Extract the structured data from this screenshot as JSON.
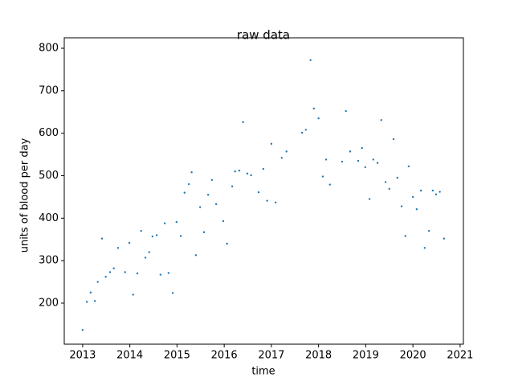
{
  "chart_data": {
    "type": "scatter",
    "title": "raw data",
    "x_label": "time",
    "y_label": "units of blood per day",
    "color": "#1f77b4",
    "x": [
      2013.0,
      2013.09,
      2013.17,
      2013.26,
      2013.32,
      2013.41,
      2013.49,
      2013.58,
      2013.66,
      2013.75,
      2013.9,
      2013.99,
      2014.07,
      2014.16,
      2014.24,
      2014.33,
      2014.41,
      2014.48,
      2014.57,
      2014.65,
      2014.74,
      2014.82,
      2014.91,
      2014.99,
      2015.08,
      2015.16,
      2015.25,
      2015.31,
      2015.4,
      2015.49,
      2015.57,
      2015.66,
      2015.74,
      2015.83,
      2015.98,
      2016.06,
      2016.17,
      2016.23,
      2016.32,
      2016.4,
      2016.49,
      2016.57,
      2016.73,
      2016.83,
      2016.91,
      2017.0,
      2017.09,
      2017.22,
      2017.32,
      2017.65,
      2017.73,
      2017.83,
      2017.9,
      2018.0,
      2018.09,
      2018.16,
      2018.24,
      2018.5,
      2018.58,
      2018.67,
      2018.84,
      2018.92,
      2018.99,
      2019.08,
      2019.16,
      2019.25,
      2019.33,
      2019.42,
      2019.5,
      2019.59,
      2019.67,
      2019.76,
      2019.84,
      2019.91,
      2020.0,
      2020.08,
      2020.17,
      2020.25,
      2020.34,
      2020.42,
      2020.49,
      2020.57,
      2020.66
    ],
    "values": [
      137,
      203,
      225,
      205,
      250,
      352,
      262,
      273,
      282,
      330,
      273,
      342,
      220,
      270,
      370,
      307,
      320,
      357,
      360,
      267,
      388,
      271,
      224,
      391,
      358,
      460,
      480,
      508,
      313,
      426,
      367,
      455,
      490,
      433,
      393,
      340,
      475,
      510,
      512,
      626,
      505,
      501,
      461,
      516,
      441,
      575,
      437,
      542,
      557,
      601,
      608,
      772,
      658,
      635,
      498,
      538,
      479,
      533,
      652,
      557,
      535,
      565,
      520,
      445,
      538,
      530,
      631,
      485,
      469,
      586,
      495,
      428,
      358,
      522,
      450,
      421,
      465,
      330,
      370,
      465,
      456,
      462,
      352
    ],
    "xlim": [
      2012.61,
      2021.07
    ],
    "ylim": [
      103.4,
      824.6
    ],
    "xticks": [
      2013,
      2014,
      2015,
      2016,
      2017,
      2018,
      2019,
      2020,
      2021
    ],
    "yticks": [
      200,
      300,
      400,
      500,
      600,
      700,
      800
    ]
  }
}
